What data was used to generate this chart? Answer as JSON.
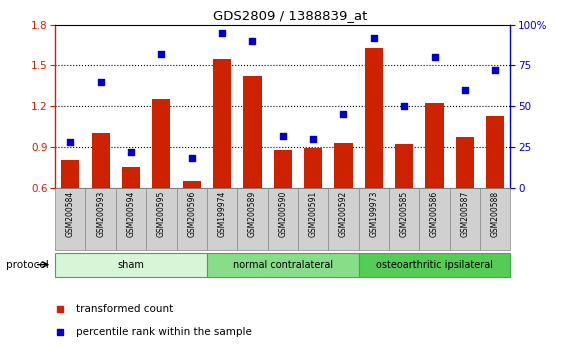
{
  "title": "GDS2809 / 1388839_at",
  "samples": [
    "GSM200584",
    "GSM200593",
    "GSM200594",
    "GSM200595",
    "GSM200596",
    "GSM199974",
    "GSM200589",
    "GSM200590",
    "GSM200591",
    "GSM200592",
    "GSM199973",
    "GSM200585",
    "GSM200586",
    "GSM200587",
    "GSM200588"
  ],
  "bar_values": [
    0.8,
    1.0,
    0.75,
    1.25,
    0.65,
    1.55,
    1.42,
    0.88,
    0.89,
    0.93,
    1.63,
    0.92,
    1.22,
    0.97,
    1.13
  ],
  "dot_values": [
    28,
    65,
    22,
    82,
    18,
    95,
    90,
    32,
    30,
    45,
    92,
    50,
    80,
    60,
    72
  ],
  "groups": [
    {
      "label": "sham",
      "start": 0,
      "end": 5
    },
    {
      "label": "normal contralateral",
      "start": 5,
      "end": 10
    },
    {
      "label": "osteoarthritic ipsilateral",
      "start": 10,
      "end": 15
    }
  ],
  "group_colors": [
    "#d8f5d8",
    "#88dd88",
    "#55cc55"
  ],
  "group_edge_color": "#44aa44",
  "ylim_left": [
    0.6,
    1.8
  ],
  "ylim_right": [
    0,
    100
  ],
  "yticks_left": [
    0.6,
    0.9,
    1.2,
    1.5,
    1.8
  ],
  "yticks_right": [
    0,
    25,
    50,
    75,
    100
  ],
  "ytick_labels_right": [
    "0",
    "25",
    "50",
    "75",
    "100%"
  ],
  "bar_color": "#cc2200",
  "dot_color": "#0000cc",
  "bar_width": 0.6,
  "legend_label_bar": "transformed count",
  "legend_label_dot": "percentile rank within the sample",
  "protocol_label": "protocol",
  "tick_label_bg": "#d0d0d0",
  "grid_lines": [
    0.9,
    1.2,
    1.5
  ],
  "figsize": [
    5.8,
    3.54
  ],
  "dpi": 100
}
